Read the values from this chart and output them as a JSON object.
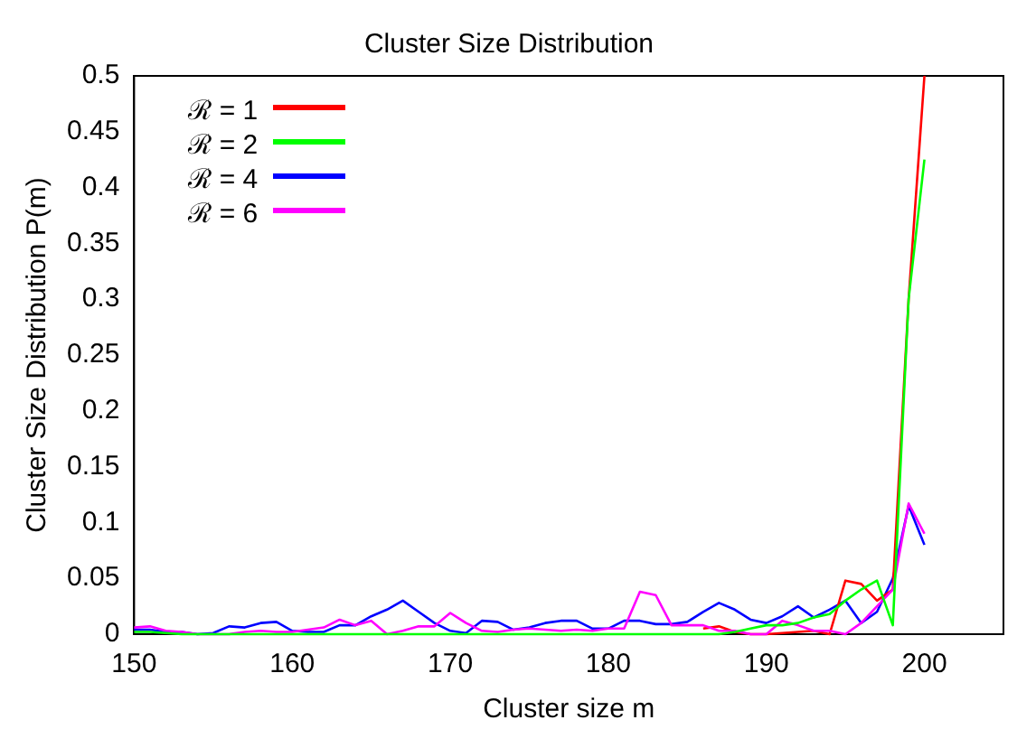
{
  "chart_data": {
    "type": "line",
    "title": "Cluster Size Distribution",
    "xlabel": "Cluster size m",
    "ylabel": "Cluster Size Distribution P(m)",
    "x": [
      150,
      151,
      152,
      153,
      154,
      155,
      156,
      157,
      158,
      159,
      160,
      161,
      162,
      163,
      164,
      165,
      166,
      167,
      168,
      169,
      170,
      171,
      172,
      173,
      174,
      175,
      176,
      177,
      178,
      179,
      180,
      181,
      182,
      183,
      184,
      185,
      186,
      187,
      188,
      189,
      190,
      191,
      192,
      193,
      194,
      195,
      196,
      197,
      198,
      199,
      200
    ],
    "series": [
      {
        "name": "ℛ = 1",
        "color": "#ff0000",
        "values": [
          null,
          null,
          null,
          null,
          null,
          null,
          null,
          null,
          null,
          null,
          null,
          null,
          null,
          null,
          null,
          null,
          null,
          null,
          null,
          null,
          null,
          null,
          null,
          null,
          null,
          null,
          null,
          null,
          null,
          null,
          null,
          null,
          null,
          null,
          null,
          null,
          0.005,
          0.007,
          0.002,
          0,
          0,
          0.001,
          0.002,
          0.003,
          0,
          0.048,
          0.045,
          0.03,
          0.04,
          0.3,
          0.5
        ]
      },
      {
        "name": "ℛ = 2",
        "color": "#00ff00",
        "values": [
          0.002,
          0.002,
          0.001,
          0,
          0,
          0,
          0,
          0,
          0,
          0,
          0,
          0,
          0,
          0,
          0,
          0,
          0,
          0,
          0,
          0,
          0,
          0,
          0,
          0,
          0,
          0,
          0,
          0,
          0,
          0,
          0,
          0,
          0,
          0,
          0,
          0,
          0,
          0,
          0.002,
          0.005,
          0.008,
          0.008,
          0.01,
          0.015,
          0.018,
          0.03,
          0.04,
          0.048,
          0.008,
          0.3,
          0.425
        ]
      },
      {
        "name": "ℛ = 4",
        "color": "#0000ff",
        "values": [
          0.004,
          0.004,
          0.002,
          0.002,
          0,
          0.001,
          0.007,
          0.006,
          0.01,
          0.011,
          0.003,
          0.002,
          0.002,
          0.008,
          0.008,
          0.016,
          0.022,
          0.03,
          0.02,
          0.01,
          0.003,
          0.001,
          0.012,
          0.011,
          0.004,
          0.006,
          0.01,
          0.012,
          0.012,
          0.005,
          0.005,
          0.012,
          0.012,
          0.009,
          0.009,
          0.011,
          0.02,
          0.028,
          0.022,
          0.013,
          0.01,
          0.016,
          0.025,
          0.015,
          0.022,
          0.03,
          0.01,
          0.02,
          0.05,
          0.115,
          0.08
        ]
      },
      {
        "name": "ℛ = 6",
        "color": "#ff00ff",
        "values": [
          0.006,
          0.007,
          0.003,
          0.002,
          0,
          0,
          0,
          0.002,
          0.003,
          0.002,
          0.002,
          0.004,
          0.006,
          0.013,
          0.008,
          0.012,
          0,
          0.003,
          0.007,
          0.007,
          0.019,
          0.01,
          0.003,
          0.002,
          0.004,
          0.005,
          0.004,
          0.003,
          0.004,
          0.003,
          0.005,
          0.005,
          0.038,
          0.035,
          0.008,
          0.008,
          0.008,
          0.003,
          0.003,
          0,
          0,
          0.012,
          0.008,
          0.003,
          0.003,
          0,
          0.01,
          0.025,
          0.04,
          0.117,
          0.09
        ]
      }
    ],
    "xlim": [
      150,
      205
    ],
    "xticks": [
      150,
      160,
      170,
      180,
      190,
      200
    ],
    "ylim": [
      0,
      0.5
    ],
    "yticks": [
      0,
      0.05,
      0.1,
      0.15,
      0.2,
      0.25,
      0.3,
      0.35,
      0.4,
      0.45,
      0.5
    ],
    "grid": false,
    "legend": "top left",
    "marker": "none",
    "line_style": "solid"
  }
}
